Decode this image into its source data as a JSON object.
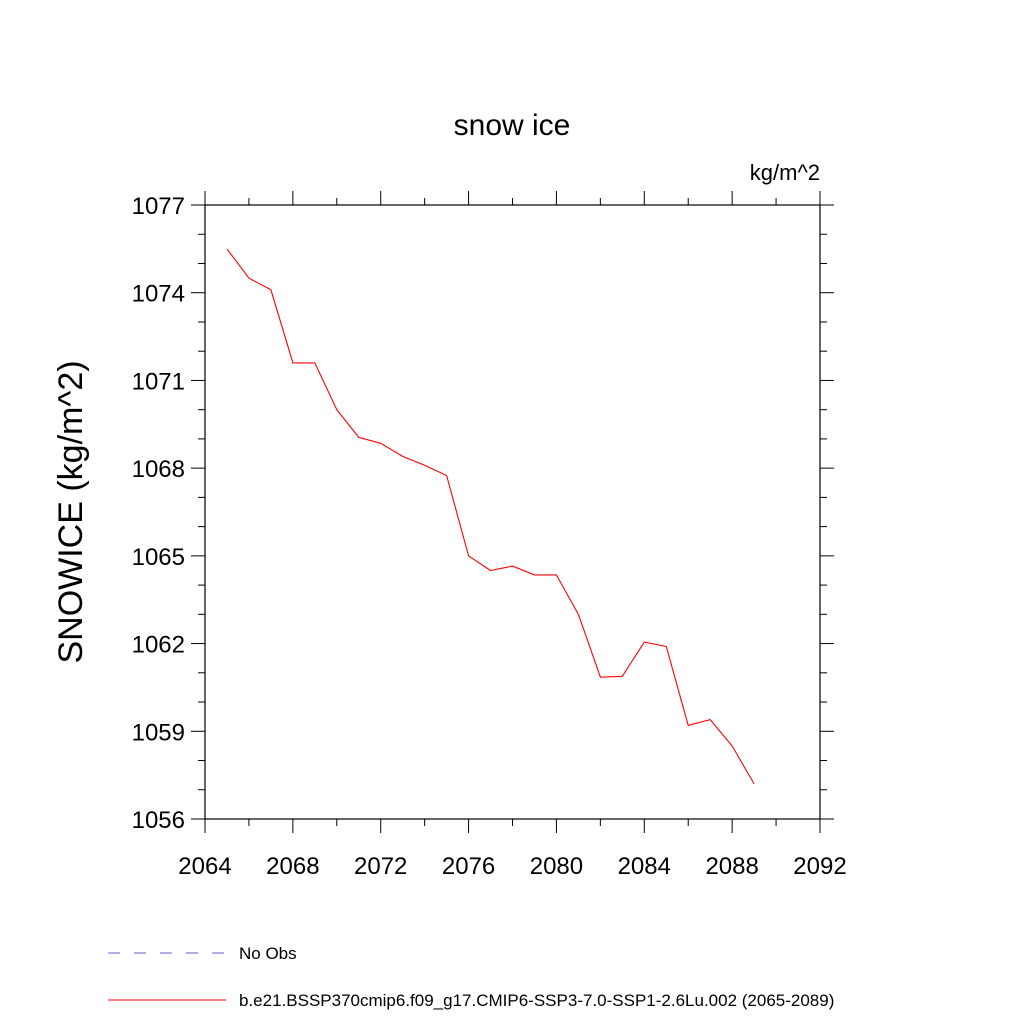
{
  "chart_data": {
    "type": "line",
    "title": "snow ice",
    "units_label": "kg/m^2",
    "ylabel": "SNOWICE  (kg/m^2)",
    "xlabel": "",
    "xlim": [
      2064,
      2092
    ],
    "ylim": [
      1056,
      1077
    ],
    "x_ticks": [
      2064,
      2068,
      2072,
      2076,
      2080,
      2084,
      2088,
      2092
    ],
    "y_ticks": [
      1056,
      1059,
      1062,
      1065,
      1068,
      1071,
      1074,
      1077
    ],
    "x_tick_labels": [
      "2064",
      "2068",
      "2072",
      "2076",
      "2080",
      "2084",
      "2088",
      "2092"
    ],
    "y_tick_labels": [
      "1056",
      "1059",
      "1062",
      "1065",
      "1068",
      "1071",
      "1074",
      "1077"
    ],
    "series": [
      {
        "name": "b.e21.BSSP370cmip6.f09_g17.CMIP6-SSP3-7.0-SSP1-2.6Lu.002 (2065-2089)",
        "color": "#ff0000",
        "x": [
          2065,
          2066,
          2067,
          2068,
          2069,
          2070,
          2071,
          2072,
          2073,
          2074,
          2075,
          2076,
          2077,
          2078,
          2079,
          2080,
          2081,
          2082,
          2083,
          2084,
          2085,
          2086,
          2087,
          2088,
          2089
        ],
        "values": [
          1075.5,
          1074.5,
          1074.1,
          1071.6,
          1071.6,
          1070.0,
          1069.05,
          1068.85,
          1068.4,
          1068.1,
          1067.75,
          1065.0,
          1064.5,
          1064.65,
          1064.35,
          1064.35,
          1063.0,
          1060.85,
          1060.88,
          1062.05,
          1061.9,
          1059.2,
          1059.4,
          1058.5,
          1057.2
        ]
      }
    ],
    "legend": [
      {
        "label": "No Obs",
        "style": "dashed",
        "color": "#6a5acd"
      },
      {
        "label": "b.e21.BSSP370cmip6.f09_g17.CMIP6-SSP3-7.0-SSP1-2.6Lu.002 (2065-2089)",
        "style": "solid",
        "color": "#ff0000"
      }
    ],
    "grid": false
  }
}
